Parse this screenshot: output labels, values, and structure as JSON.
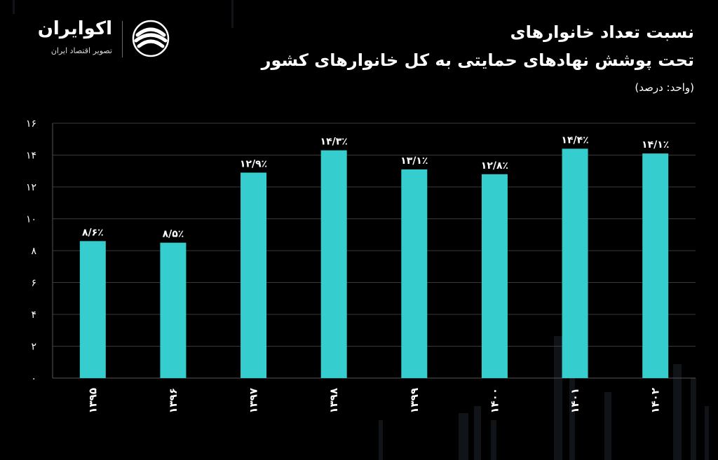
{
  "brand": {
    "name": "اکوایران",
    "tagline": "تصویر اقتصاد ایران",
    "logo_icon": "ecoiran-logo-icon"
  },
  "colors": {
    "background": "#000000",
    "bar": "#35cdcd",
    "grid": "#3a3a3a",
    "text": "#ffffff"
  },
  "chart_data": {
    "type": "bar",
    "title_line1": "نسبت تعداد خانوارهای",
    "title_line2": "تحت پوشش نهادهای حمایتی به کل خانوارهای کشور",
    "unit_note": "(واحد: درصد)",
    "categories": [
      "۱۳۹۵",
      "۱۳۹۶",
      "۱۳۹۷",
      "۱۳۹۸",
      "۱۳۹۹",
      "۱۴۰۰",
      "۱۴۰۱",
      "۱۴۰۲"
    ],
    "values": [
      8.6,
      8.5,
      12.9,
      14.3,
      13.1,
      12.8,
      14.4,
      14.1
    ],
    "data_labels": [
      "۸/۶٪",
      "۸/۵٪",
      "۱۲/۹٪",
      "۱۴/۳٪",
      "۱۳/۱٪",
      "۱۲/۸٪",
      "۱۴/۴٪",
      "۱۴/۱٪"
    ],
    "yticks": [
      0,
      2,
      4,
      6,
      8,
      10,
      12,
      14,
      16
    ],
    "ytick_labels": [
      "۰",
      "۲",
      "۴",
      "۶",
      "۸",
      "۱۰",
      "۱۲",
      "۱۴",
      "۱۶"
    ],
    "ylim": [
      0,
      16
    ],
    "grid": true,
    "legend": "none"
  }
}
